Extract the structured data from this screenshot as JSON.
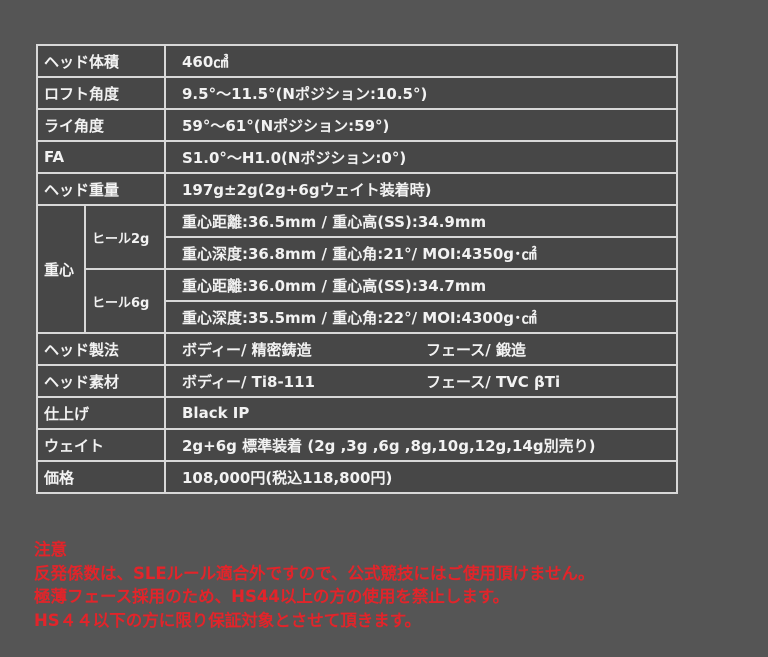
{
  "specs": [
    {
      "label": "ヘッド体積",
      "value": "460㎤"
    },
    {
      "label": "ロフト角度",
      "value": "9.5°〜11.5°(Nポジション:10.5°)"
    },
    {
      "label": "ライ角度",
      "value": "59°〜61°(Nポジション:59°)"
    },
    {
      "label": "FA",
      "value": "S1.0°〜H1.0(Nポジション:0°)"
    },
    {
      "label": "ヘッド重量",
      "value": "197g±2g(2g+6gウェイト装着時)"
    }
  ],
  "cg": {
    "label": "重心",
    "groups": [
      {
        "label": "ヒール2g",
        "lines": [
          "重心距離:36.5mm / 重心高(SS):34.9mm",
          "重心深度:36.8mm / 重心角:21°/ MOI:4350g･㎠"
        ]
      },
      {
        "label": "ヒール6g",
        "lines": [
          "重心距離:36.0mm / 重心高(SS):34.7mm",
          "重心深度:35.5mm / 重心角:22°/ MOI:4300g･㎠"
        ]
      }
    ]
  },
  "specs2": [
    {
      "label": "ヘッド製法",
      "value": "ボディー/ 精密鋳造",
      "value2": "フェース/ 鍛造"
    },
    {
      "label": "ヘッド素材",
      "value": "ボディー/ Ti8-111",
      "value2": "フェース/ TVC βTi"
    },
    {
      "label": "仕上げ",
      "value": "Black IP"
    },
    {
      "label": "ウェイト",
      "value": "2g+6g 標準装着 (2g ,3g ,6g ,8g,10g,12g,14g別売り)"
    },
    {
      "label": "価格",
      "value": "108,000円(税込118,800円)"
    }
  ],
  "notes": {
    "title": "注意",
    "lines": [
      "反発係数は、SLEルール適合外ですので、公式競技にはご使用頂けません。",
      "極薄フェース採用のため、HS44以上の方の使用を禁止します。",
      "HS４４以下の方に限り保証対象とさせて頂きます。"
    ]
  },
  "colors": {
    "background": "#555555",
    "table": "#474747",
    "note": "#e2242a"
  }
}
